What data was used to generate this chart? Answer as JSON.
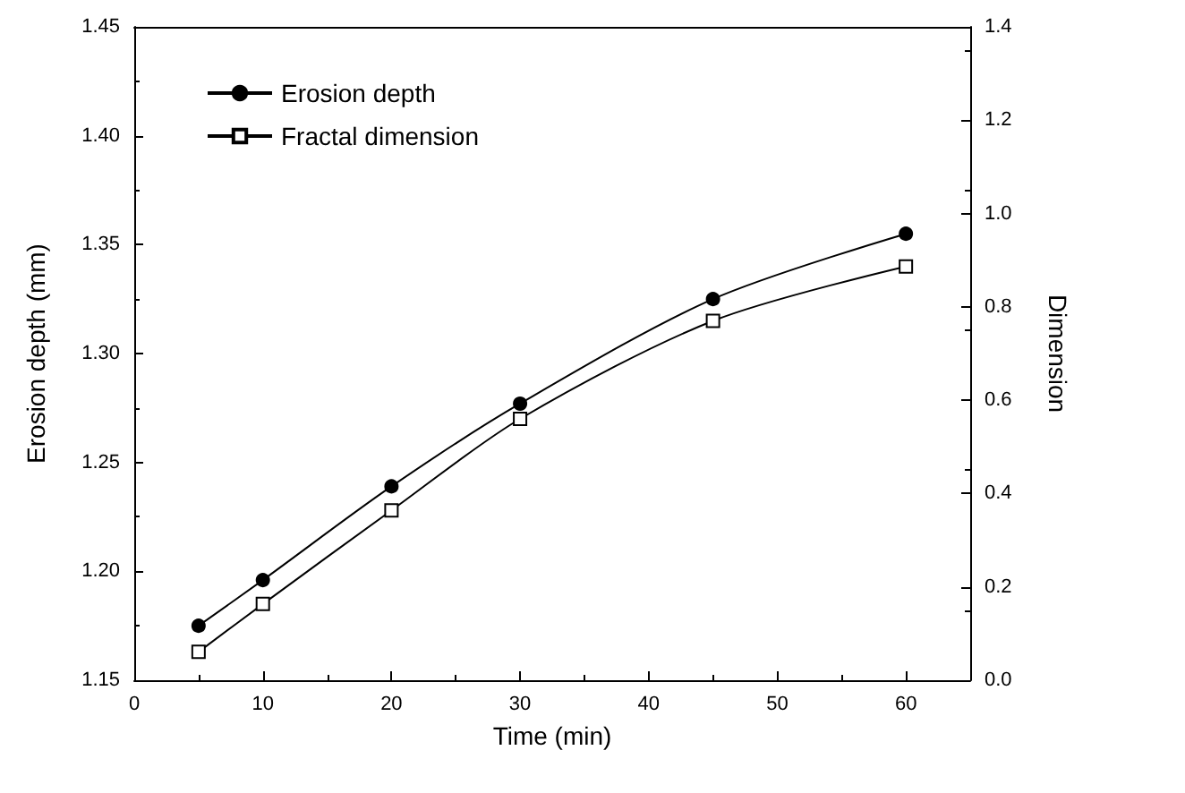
{
  "chart_data": {
    "type": "line",
    "xlabel": "Time (min)",
    "ylabel": "Erosion depth (mm)",
    "y2label": "Dimension",
    "x": [
      5,
      10,
      20,
      30,
      45,
      60
    ],
    "series": [
      {
        "name": "Erosion depth",
        "color": "#000000",
        "marker": "circle",
        "values": [
          1.175,
          1.196,
          1.239,
          1.277,
          1.325,
          1.355
        ]
      },
      {
        "name": "Fractal dimension",
        "color": "#000000",
        "marker": "square",
        "values": [
          1.163,
          1.185,
          1.228,
          1.27,
          1.315,
          1.34
        ]
      }
    ],
    "xlim": [
      0,
      65
    ],
    "xticks": [
      0,
      10,
      20,
      30,
      40,
      50,
      60
    ],
    "ylim": [
      1.15,
      1.45
    ],
    "yticks": [
      1.15,
      {
        "value": 1.2,
        "label": "1.20"
      },
      1.25,
      {
        "value": 1.3,
        "label": "1.30"
      },
      1.35,
      {
        "value": 1.4,
        "label": "1.40"
      },
      1.45
    ],
    "y2lim": [
      0,
      1.4
    ],
    "y2ticks": [
      {
        "value": 0,
        "label": "0.0"
      },
      0.2,
      0.4,
      0.6,
      0.8,
      {
        "value": 1,
        "label": "1.0"
      },
      1.2,
      1.4
    ],
    "legend": "top left",
    "grid": false,
    "line_style": "solid"
  }
}
